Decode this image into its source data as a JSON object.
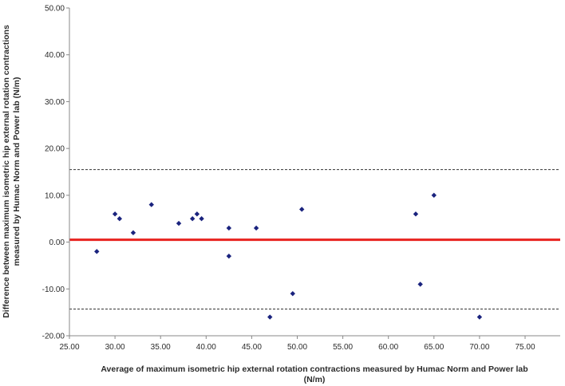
{
  "chart_data": {
    "type": "scatter",
    "title": "",
    "xlabel_lines": [
      "Average of maximum isometric hip external rotation contractions measured by Humac Norm and Power lab",
      "(N/m)"
    ],
    "ylabel_lines": [
      "Difference between maximum isometric hip external rotation contractions",
      "measured by Humac Norm and Power lab (N/m)"
    ],
    "xlim": [
      25,
      75
    ],
    "ylim": [
      -20,
      50
    ],
    "xticks": [
      "25.00",
      "30.00",
      "35.00",
      "40.00",
      "45.00",
      "50.00",
      "55.00",
      "60.00",
      "65.00",
      "70.00",
      "75.00"
    ],
    "yticks": [
      "50.00",
      "40.00",
      "30.00",
      "20.00",
      "10.00",
      "0.00",
      "-10.00",
      "-20.00"
    ],
    "grid": false,
    "points": [
      {
        "x": 28.0,
        "y": -2.0
      },
      {
        "x": 30.0,
        "y": 6.0
      },
      {
        "x": 30.5,
        "y": 5.0
      },
      {
        "x": 32.0,
        "y": 2.0
      },
      {
        "x": 34.0,
        "y": 8.0
      },
      {
        "x": 37.0,
        "y": 4.0
      },
      {
        "x": 38.5,
        "y": 5.0
      },
      {
        "x": 39.0,
        "y": 6.0
      },
      {
        "x": 39.5,
        "y": 5.0
      },
      {
        "x": 42.5,
        "y": 3.0
      },
      {
        "x": 42.5,
        "y": -3.0
      },
      {
        "x": 45.5,
        "y": 3.0
      },
      {
        "x": 47.0,
        "y": -16.0
      },
      {
        "x": 49.5,
        "y": -11.0
      },
      {
        "x": 50.5,
        "y": 7.0
      },
      {
        "x": 63.0,
        "y": 6.0
      },
      {
        "x": 63.5,
        "y": -9.0
      },
      {
        "x": 65.0,
        "y": 10.0
      },
      {
        "x": 70.0,
        "y": -16.0
      }
    ],
    "reference_lines": [
      {
        "kind": "mean",
        "y": 0.5,
        "color": "#e8231f",
        "style": "solid"
      },
      {
        "kind": "upper-limit",
        "y": 15.5,
        "color": "#333333",
        "style": "dashed"
      },
      {
        "kind": "lower-limit",
        "y": -14.3,
        "color": "#333333",
        "style": "dashed"
      }
    ],
    "marker_color": "#1a237e"
  }
}
